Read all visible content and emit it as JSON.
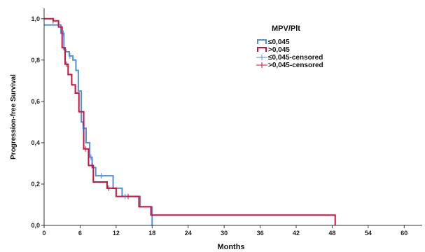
{
  "chart_data": {
    "type": "line",
    "xlabel": "Months",
    "ylabel": "Progression-free Survival",
    "xlim": [
      0,
      63
    ],
    "ylim": [
      0,
      1.05
    ],
    "x_ticks": [
      0,
      6,
      12,
      18,
      24,
      30,
      36,
      42,
      48,
      54,
      60
    ],
    "x_tick_labels": [
      "0",
      "6",
      "12",
      "18",
      "24",
      "30",
      "36",
      "42",
      "48",
      "54",
      "60"
    ],
    "y_ticks": [
      0,
      0.2,
      0.4,
      0.6,
      0.8,
      1.0
    ],
    "y_tick_labels": [
      "0,0",
      "0,2",
      "0,4",
      "0,6",
      "0,8",
      "1,0"
    ],
    "grid": false,
    "legend_title": "MPV/Plt",
    "legend_position": "top-right",
    "series": [
      {
        "name": "≤0,045",
        "color": "#4f8fdc",
        "step": true,
        "x": [
          0,
          2.3,
          2.8,
          3.3,
          3.6,
          4.2,
          4.8,
          5.3,
          5.7,
          6.2,
          6.5,
          7.0,
          7.6,
          8.0,
          8.6,
          11.0,
          11.5,
          13.0,
          16.0,
          17.5,
          18.0
        ],
        "y": [
          0.97,
          0.97,
          0.93,
          0.85,
          0.84,
          0.82,
          0.8,
          0.75,
          0.65,
          0.5,
          0.47,
          0.4,
          0.33,
          0.28,
          0.24,
          0.24,
          0.18,
          0.14,
          0.09,
          0.09,
          0.0
        ]
      },
      {
        "name": ">0,045",
        "color": "#d0103a",
        "step": true,
        "x": [
          0,
          1.5,
          2.4,
          3.0,
          3.5,
          4.0,
          4.6,
          5.2,
          5.8,
          6.6,
          7.4,
          8.2,
          10.5,
          12.0,
          13.5,
          15.8,
          17.8,
          48.5
        ],
        "y": [
          1.0,
          0.99,
          0.96,
          0.86,
          0.78,
          0.73,
          0.68,
          0.64,
          0.55,
          0.37,
          0.29,
          0.21,
          0.18,
          0.14,
          0.14,
          0.09,
          0.05,
          0.0
        ]
      }
    ],
    "censored": [
      {
        "series": "≤0,045-censored",
        "color": "#4f8fdc",
        "x": [
          3.2,
          4.3,
          6.5,
          7.8,
          9.5,
          13.5
        ]
      },
      {
        "series": ">0,045-censored",
        "color": "#d0103a",
        "x": [
          1.5,
          3.8,
          6.9,
          8.0,
          10.8,
          14.0
        ]
      }
    ],
    "legend_entries": [
      {
        "label": "≤0,045",
        "color": "#4f8fdc",
        "kind": "line"
      },
      {
        "label": ">0,045",
        "color": "#d0103a",
        "kind": "line"
      },
      {
        "label": "≤0,045-censored",
        "color": "#4f8fdc",
        "kind": "cross"
      },
      {
        "label": ">0,045-censored",
        "color": "#d0103a",
        "kind": "cross"
      }
    ]
  }
}
